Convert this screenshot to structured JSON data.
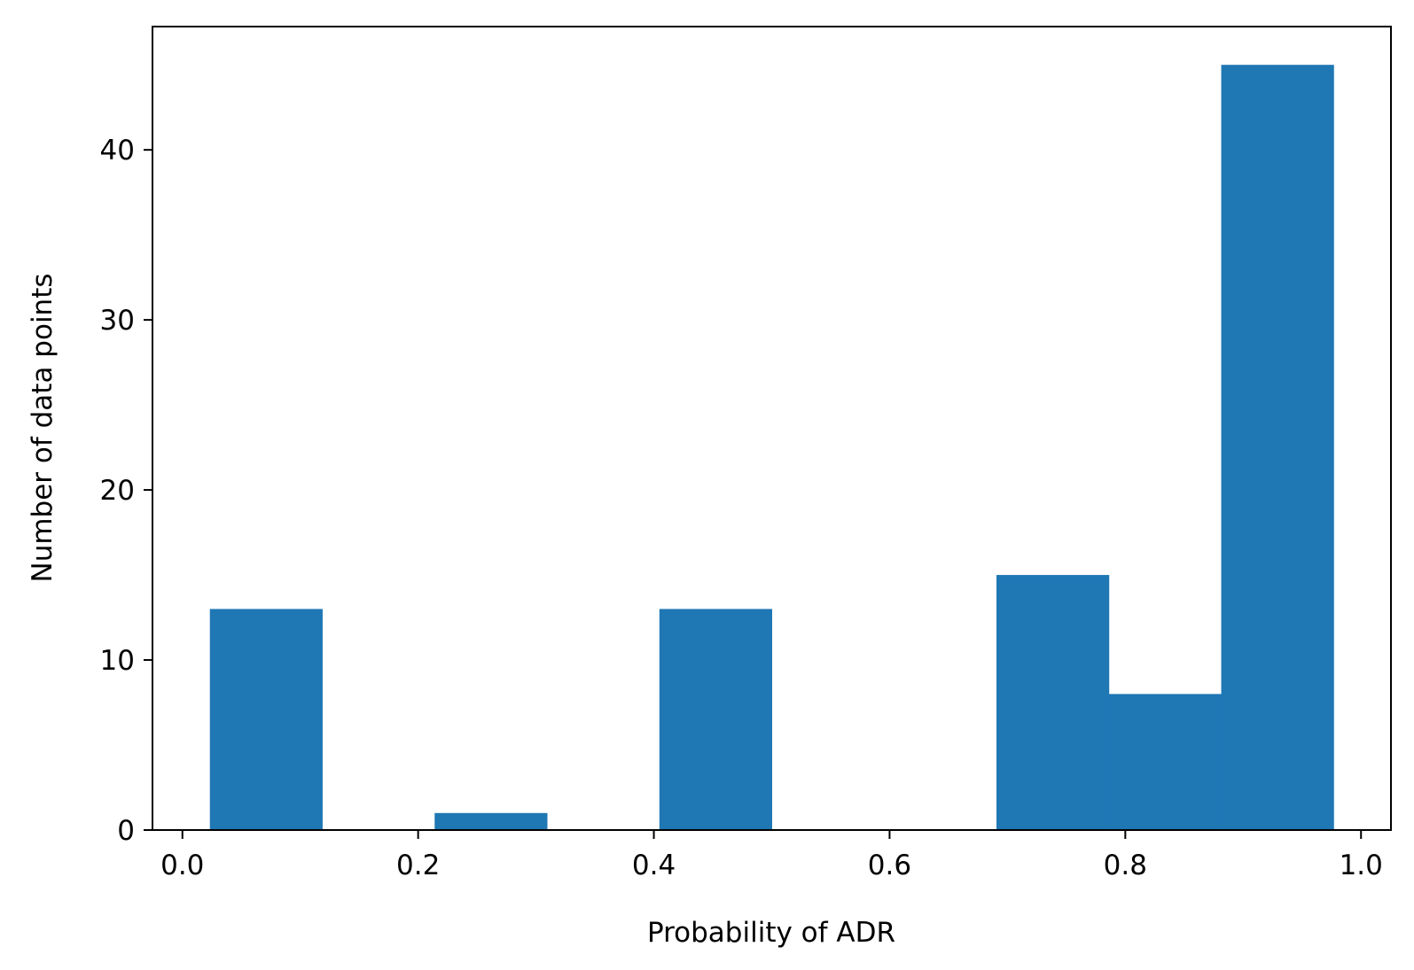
{
  "chart_data": {
    "type": "bar",
    "subtype": "histogram",
    "title": "",
    "xlabel": "Probability of ADR",
    "ylabel": "Number of data points",
    "bins": [
      {
        "x0": 0.0233,
        "x1": 0.1186,
        "count": 13
      },
      {
        "x0": 0.1186,
        "x1": 0.214,
        "count": 0
      },
      {
        "x0": 0.214,
        "x1": 0.3093,
        "count": 1
      },
      {
        "x0": 0.3093,
        "x1": 0.4047,
        "count": 0
      },
      {
        "x0": 0.4047,
        "x1": 0.5,
        "count": 13
      },
      {
        "x0": 0.5,
        "x1": 0.5953,
        "count": 0
      },
      {
        "x0": 0.5953,
        "x1": 0.6907,
        "count": 0
      },
      {
        "x0": 0.6907,
        "x1": 0.786,
        "count": 15
      },
      {
        "x0": 0.786,
        "x1": 0.8814,
        "count": 8
      },
      {
        "x0": 0.8814,
        "x1": 0.9767,
        "count": 45
      }
    ],
    "xlim": [
      -0.0254,
      1.0254
    ],
    "ylim": [
      0,
      47.25
    ],
    "xticks": [
      0.0,
      0.2,
      0.4,
      0.6,
      0.8,
      1.0
    ],
    "xtick_labels": [
      "0.0",
      "0.2",
      "0.4",
      "0.6",
      "0.8",
      "1.0"
    ],
    "yticks": [
      0,
      10,
      20,
      30,
      40
    ],
    "ytick_labels": [
      "0",
      "10",
      "20",
      "30",
      "40"
    ],
    "bar_color": "#1f77b4",
    "grid": false,
    "legend": "none"
  }
}
